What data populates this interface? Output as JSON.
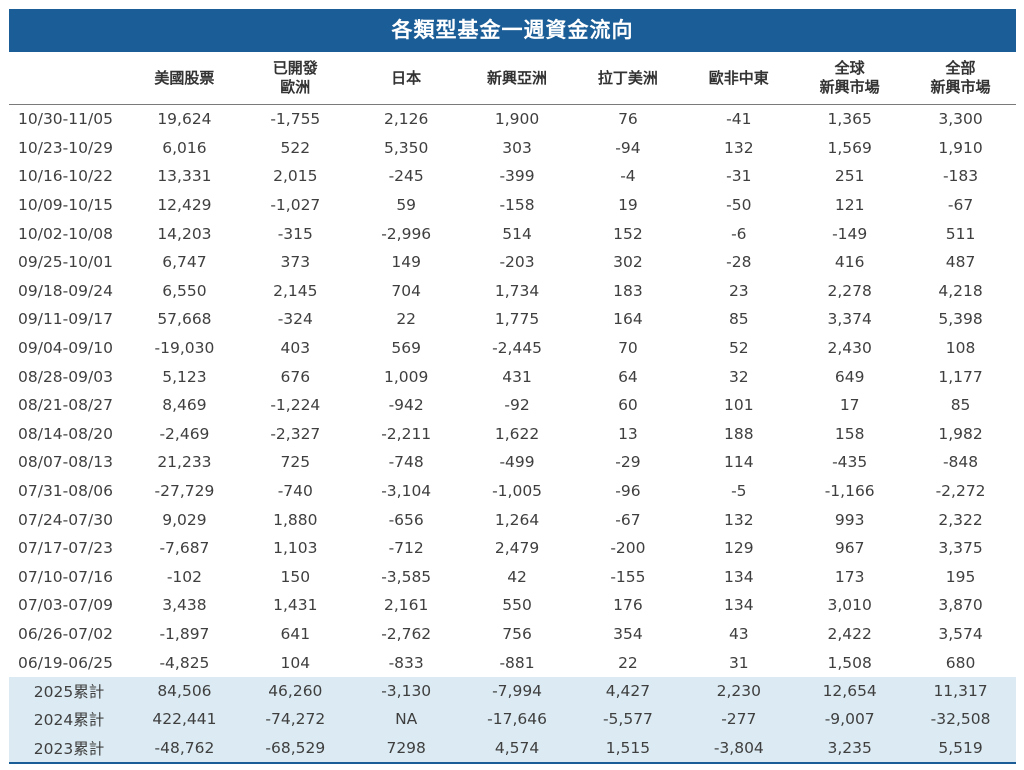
{
  "chart_data": {
    "type": "table",
    "title": "各類型基金一週資金流向",
    "columns": [
      {
        "key": "period",
        "label": ""
      },
      {
        "key": "us_equity",
        "label": "美國股票"
      },
      {
        "key": "dev_europe",
        "label": "已開發\n歐洲"
      },
      {
        "key": "japan",
        "label": "日本"
      },
      {
        "key": "em_asia",
        "label": "新興亞洲"
      },
      {
        "key": "latam",
        "label": "拉丁美洲"
      },
      {
        "key": "emea",
        "label": "歐非中東"
      },
      {
        "key": "global_em",
        "label": "全球\n新興市場"
      },
      {
        "key": "all_em",
        "label": "全部\n新興市場"
      }
    ],
    "rows": [
      [
        "10/30-11/05",
        "19,624",
        "-1,755",
        "2,126",
        "1,900",
        "76",
        "-41",
        "1,365",
        "3,300"
      ],
      [
        "10/23-10/29",
        "6,016",
        "522",
        "5,350",
        "303",
        "-94",
        "132",
        "1,569",
        "1,910"
      ],
      [
        "10/16-10/22",
        "13,331",
        "2,015",
        "-245",
        "-399",
        "-4",
        "-31",
        "251",
        "-183"
      ],
      [
        "10/09-10/15",
        "12,429",
        "-1,027",
        "59",
        "-158",
        "19",
        "-50",
        "121",
        "-67"
      ],
      [
        "10/02-10/08",
        "14,203",
        "-315",
        "-2,996",
        "514",
        "152",
        "-6",
        "-149",
        "511"
      ],
      [
        "09/25-10/01",
        "6,747",
        "373",
        "149",
        "-203",
        "302",
        "-28",
        "416",
        "487"
      ],
      [
        "09/18-09/24",
        "6,550",
        "2,145",
        "704",
        "1,734",
        "183",
        "23",
        "2,278",
        "4,218"
      ],
      [
        "09/11-09/17",
        "57,668",
        "-324",
        "22",
        "1,775",
        "164",
        "85",
        "3,374",
        "5,398"
      ],
      [
        "09/04-09/10",
        "-19,030",
        "403",
        "569",
        "-2,445",
        "70",
        "52",
        "2,430",
        "108"
      ],
      [
        "08/28-09/03",
        "5,123",
        "676",
        "1,009",
        "431",
        "64",
        "32",
        "649",
        "1,177"
      ],
      [
        "08/21-08/27",
        "8,469",
        "-1,224",
        "-942",
        "-92",
        "60",
        "101",
        "17",
        "85"
      ],
      [
        "08/14-08/20",
        "-2,469",
        "-2,327",
        "-2,211",
        "1,622",
        "13",
        "188",
        "158",
        "1,982"
      ],
      [
        "08/07-08/13",
        "21,233",
        "725",
        "-748",
        "-499",
        "-29",
        "114",
        "-435",
        "-848"
      ],
      [
        "07/31-08/06",
        "-27,729",
        "-740",
        "-3,104",
        "-1,005",
        "-96",
        "-5",
        "-1,166",
        "-2,272"
      ],
      [
        "07/24-07/30",
        "9,029",
        "1,880",
        "-656",
        "1,264",
        "-67",
        "132",
        "993",
        "2,322"
      ],
      [
        "07/17-07/23",
        "-7,687",
        "1,103",
        "-712",
        "2,479",
        "-200",
        "129",
        "967",
        "3,375"
      ],
      [
        "07/10-07/16",
        "-102",
        "150",
        "-3,585",
        "42",
        "-155",
        "134",
        "173",
        "195"
      ],
      [
        "07/03-07/09",
        "3,438",
        "1,431",
        "2,161",
        "550",
        "176",
        "134",
        "3,010",
        "3,870"
      ],
      [
        "06/26-07/02",
        "-1,897",
        "641",
        "-2,762",
        "756",
        "354",
        "43",
        "2,422",
        "3,574"
      ],
      [
        "06/19-06/25",
        "-4,825",
        "104",
        "-833",
        "-881",
        "22",
        "31",
        "1,508",
        "680"
      ]
    ],
    "cumulative_rows": [
      [
        "2025累計",
        "84,506",
        "46,260",
        "-3,130",
        "-7,994",
        "4,427",
        "2,230",
        "12,654",
        "11,317"
      ],
      [
        "2024累計",
        "422,441",
        "-74,272",
        "NA",
        "-17,646",
        "-5,577",
        "-277",
        "-9,007",
        "-32,508"
      ],
      [
        "2023累計",
        "-48,762",
        "-68,529",
        "7298",
        "4,574",
        "1,515",
        "-3,804",
        "3,235",
        "5,519"
      ]
    ]
  },
  "colors": {
    "title_background": "#1b5d96",
    "title_text": "#ffffff",
    "cumulative_background": "#dcebf3",
    "body_text": "#3f3f3f"
  }
}
